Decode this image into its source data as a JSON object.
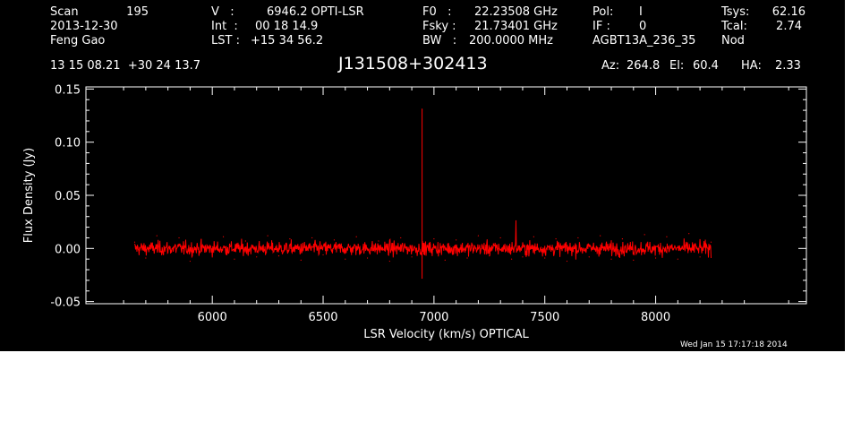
{
  "header": {
    "scan_label": "Scan",
    "scan_value": "195",
    "date": "2013-12-30",
    "observer": "Feng Gao",
    "v_label": "V   :",
    "v_value": "6946.2 OPTI-LSR",
    "int_label": "Int  :",
    "int_value": "00 18 14.9",
    "lst_label": "LST :",
    "lst_value": "+15 34 56.2",
    "f0_label": "F0   :",
    "f0_value": "22.23508 GHz",
    "fsky_label": "Fsky :",
    "fsky_value": "21.73401 GHz",
    "bw_label": "BW   :",
    "bw_value": "200.0000 MHz",
    "pol_label": "Pol:",
    "pol_value": "I",
    "if_label": "IF :",
    "if_value": "0",
    "project": "AGBT13A_236_35",
    "tsys_label": "Tsys:",
    "tsys_value": "62.16",
    "tcal_label": "Tcal:",
    "tcal_value": "2.74",
    "mode": "Nod",
    "coords": "13 15 08.21  +30 24 13.7",
    "source": "J131508+302413",
    "az_label": "Az:",
    "az_value": "264.8",
    "el_label": "El:",
    "el_value": "60.4",
    "ha_label": "HA:",
    "ha_value": "2.33"
  },
  "timestamp": "Wed Jan 15 17:17:18 2014",
  "colors": {
    "background": "#000000",
    "axes": "#ffffff",
    "trace": "#ff0000"
  },
  "chart_data": {
    "type": "line",
    "xlabel": "LSR Velocity (km/s) OPTICAL",
    "ylabel": "Flux Density (Jy)",
    "xlim": [
      5430,
      8680
    ],
    "ylim": [
      -0.052,
      0.152
    ],
    "xticks": [
      6000,
      6500,
      7000,
      7500,
      8000
    ],
    "xtick_labels": [
      "6000",
      "6500",
      "7000",
      "7500",
      "8000"
    ],
    "yticks": [
      -0.05,
      0.0,
      0.05,
      0.1,
      0.15
    ],
    "ytick_labels": [
      "-0.05",
      "0.00",
      "0.05",
      "0.10",
      "0.15"
    ],
    "grid": false,
    "legend": "none",
    "series": [
      {
        "x_range": [
          5650,
          8250
        ],
        "baseline": 0.0,
        "noise_rms": 0.0055,
        "features": [
          {
            "x": 6946.2,
            "y": 0.131
          },
          {
            "x": 6946.2,
            "y": -0.028
          },
          {
            "x": 7370,
            "y": 0.026
          }
        ],
        "values": [
          [
            5650,
            0.006
          ],
          [
            5700,
            -0.009
          ],
          [
            5750,
            0.012
          ],
          [
            5800,
            -0.004
          ],
          [
            5850,
            0.01
          ],
          [
            5900,
            -0.012
          ],
          [
            5950,
            0.008
          ],
          [
            6000,
            -0.006
          ],
          [
            6050,
            0.011
          ],
          [
            6100,
            -0.01
          ],
          [
            6150,
            0.007
          ],
          [
            6200,
            -0.008
          ],
          [
            6250,
            0.012
          ],
          [
            6300,
            -0.007
          ],
          [
            6350,
            0.009
          ],
          [
            6400,
            -0.011
          ],
          [
            6450,
            0.01
          ],
          [
            6500,
            -0.006
          ],
          [
            6550,
            0.008
          ],
          [
            6600,
            -0.01
          ],
          [
            6650,
            0.011
          ],
          [
            6700,
            -0.009
          ],
          [
            6750,
            0.007
          ],
          [
            6800,
            -0.012
          ],
          [
            6850,
            0.01
          ],
          [
            6900,
            -0.008
          ],
          [
            6946.2,
            0.131
          ],
          [
            6946.2,
            -0.028
          ],
          [
            7000,
            0.009
          ],
          [
            7050,
            -0.011
          ],
          [
            7100,
            0.008
          ],
          [
            7150,
            -0.009
          ],
          [
            7200,
            0.012
          ],
          [
            7250,
            -0.007
          ],
          [
            7300,
            0.01
          ],
          [
            7350,
            -0.01
          ],
          [
            7370,
            0.026
          ],
          [
            7400,
            -0.008
          ],
          [
            7450,
            0.011
          ],
          [
            7500,
            -0.009
          ],
          [
            7550,
            0.009
          ],
          [
            7600,
            -0.012
          ],
          [
            7650,
            0.01
          ],
          [
            7700,
            -0.008
          ],
          [
            7750,
            0.012
          ],
          [
            7800,
            -0.01
          ],
          [
            7850,
            0.009
          ],
          [
            7900,
            -0.011
          ],
          [
            7950,
            0.013
          ],
          [
            8000,
            -0.009
          ],
          [
            8050,
            0.011
          ],
          [
            8100,
            -0.01
          ],
          [
            8150,
            0.014
          ],
          [
            8200,
            -0.008
          ],
          [
            8250,
            0.006
          ]
        ]
      }
    ]
  }
}
